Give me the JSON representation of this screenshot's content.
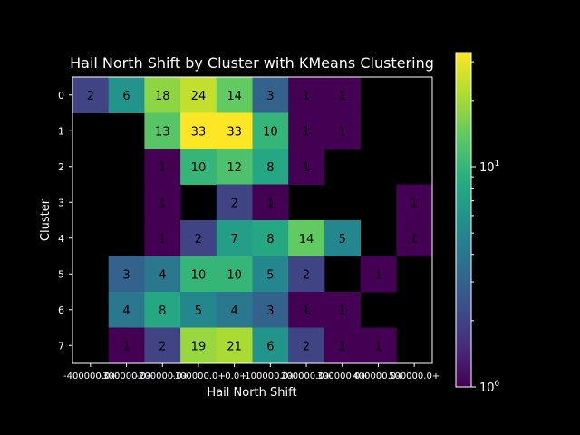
{
  "chart_data": {
    "type": "heatmap",
    "title": "Hail North Shift by Cluster with KMeans Clustering",
    "xlabel": "Hail North Shift",
    "ylabel": "Cluster",
    "x_categories": [
      "-400000.0+",
      "-300000.0+",
      "-200000.0+",
      "-100000.0+",
      "-0.0+",
      "100000.0+",
      "200000.0+",
      "300000.0+",
      "400000.0+",
      "500000.0+"
    ],
    "y_categories": [
      "0",
      "1",
      "2",
      "3",
      "4",
      "5",
      "6",
      "7"
    ],
    "values": [
      [
        2,
        6,
        18,
        24,
        14,
        3,
        1,
        1,
        null,
        null
      ],
      [
        null,
        null,
        13,
        33,
        33,
        10,
        1,
        1,
        null,
        null
      ],
      [
        null,
        null,
        1,
        10,
        12,
        8,
        1,
        null,
        null,
        null
      ],
      [
        null,
        null,
        1,
        null,
        2,
        1,
        null,
        null,
        null,
        1
      ],
      [
        null,
        null,
        1,
        2,
        7,
        8,
        14,
        5,
        null,
        1
      ],
      [
        null,
        3,
        4,
        10,
        10,
        5,
        2,
        null,
        1,
        null
      ],
      [
        null,
        4,
        8,
        5,
        4,
        3,
        1,
        1,
        null,
        null
      ],
      [
        null,
        1,
        2,
        19,
        21,
        6,
        2,
        1,
        1,
        null
      ]
    ],
    "colorbar": {
      "scale": "log",
      "colormap": "viridis",
      "range": [
        1,
        33
      ],
      "tick_labels": [
        "10^0",
        "10^1"
      ]
    },
    "colors": {
      "background": "#000000",
      "text": "#ffffff",
      "cell_text": "#000000"
    }
  }
}
